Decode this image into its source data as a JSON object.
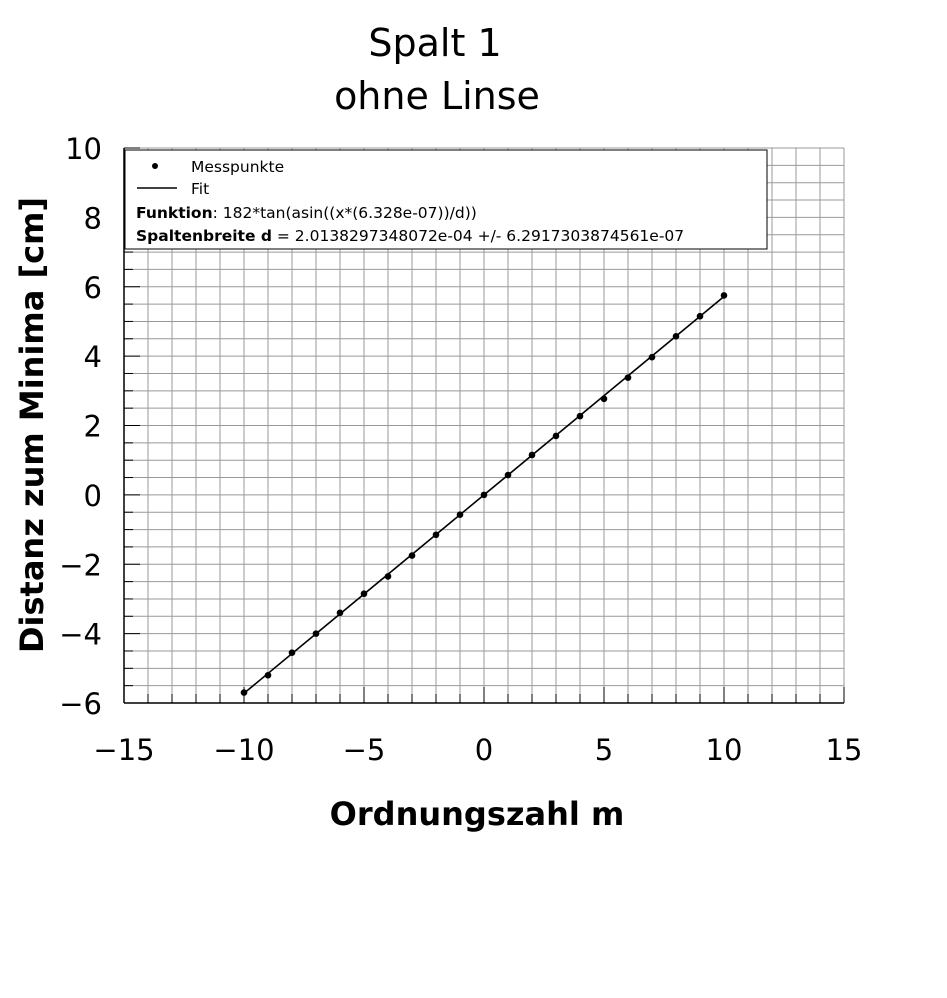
{
  "chart_data": {
    "type": "scatter",
    "title": [
      "Spalt 1",
      "ohne Linse"
    ],
    "xlabel": "Ordnungszahl m",
    "ylabel": "Distanz zum Minima [cm]",
    "xlim": [
      -15,
      15
    ],
    "ylim": [
      -6,
      10
    ],
    "x_ticks": [
      -15,
      -10,
      -5,
      0,
      5,
      10,
      15
    ],
    "x_tick_labels": [
      "−15",
      "−10",
      "−5",
      "0",
      "5",
      "10",
      "15"
    ],
    "y_ticks": [
      -6,
      -4,
      -2,
      0,
      2,
      4,
      6,
      8,
      10
    ],
    "y_tick_labels": [
      "−6",
      "−4",
      "−2",
      "0",
      "2",
      "4",
      "6",
      "8",
      "10"
    ],
    "grid": true,
    "legend_position": "top-left",
    "series": [
      {
        "name": "Messpunkte",
        "kind": "points",
        "x": [
          -10,
          -9,
          -8,
          -7,
          -6,
          -5,
          -4,
          -3,
          -2,
          -1,
          0,
          1,
          2,
          3,
          4,
          5,
          6,
          7,
          8,
          9,
          10
        ],
        "y": [
          -5.7,
          -5.2,
          -4.55,
          -4.0,
          -3.4,
          -2.85,
          -2.35,
          -1.75,
          -1.15,
          -0.57,
          0.0,
          0.57,
          1.15,
          1.7,
          2.27,
          2.77,
          3.38,
          3.97,
          4.57,
          5.15,
          5.75
        ]
      },
      {
        "name": "Fit",
        "kind": "line",
        "x": [
          -10,
          10
        ],
        "y": [
          -5.72,
          5.72
        ]
      }
    ],
    "legend_extra": [
      {
        "label": "Funktion",
        "text": ": 182*tan(asin((x*(6.328e-07))/d))"
      },
      {
        "label": "Spaltenbreite d",
        "text": " = 2.0138297348072e-04 +/- 6.2917303874561e-07"
      }
    ],
    "colors": {
      "points": "#000000",
      "line": "#000000",
      "grid": "#999999"
    }
  }
}
